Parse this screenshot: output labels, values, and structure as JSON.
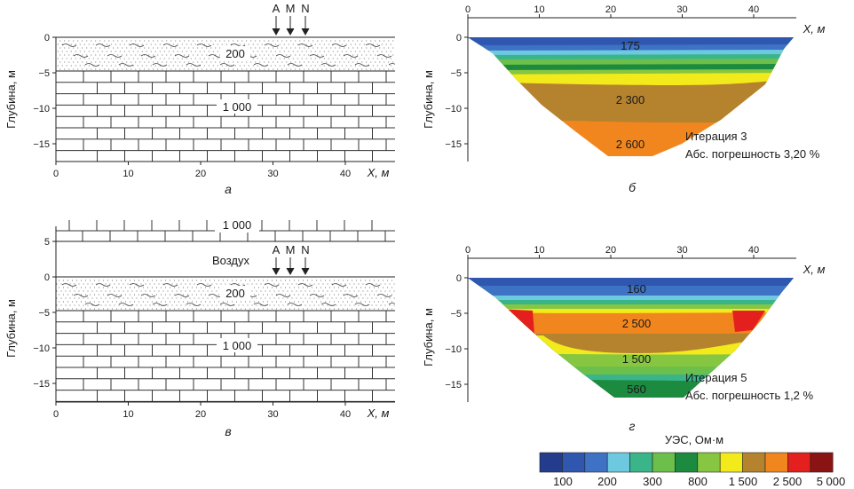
{
  "panels": {
    "a": {
      "caption": "а",
      "ylabel": "Глубина, м",
      "xlabel": "X, м",
      "electrodes": [
        "A",
        "M",
        "N"
      ],
      "layer1_label": "200",
      "layer2_label": "1 000",
      "x_ticks": [
        "0",
        "10",
        "20",
        "30",
        "40"
      ],
      "y_ticks": [
        "0",
        "−5",
        "−10",
        "−15"
      ]
    },
    "b": {
      "caption": "б",
      "ylabel": "Глубина, м",
      "xlabel": "X, м",
      "labels": [
        "175",
        "2 300",
        "2 600"
      ],
      "iteration": "Итерация 3",
      "error": "Абс. погрешность 3,20 %",
      "x_ticks": [
        "0",
        "10",
        "20",
        "30",
        "40"
      ],
      "y_ticks": [
        "0",
        "−5",
        "−10",
        "−15"
      ]
    },
    "v": {
      "caption": "в",
      "ylabel": "Глубина, м",
      "xlabel": "X, м",
      "electrodes": [
        "A",
        "M",
        "N"
      ],
      "air_label": "Воздух",
      "top_label": "1 000",
      "layer1_label": "200",
      "layer2_label": "1 000",
      "x_ticks": [
        "0",
        "10",
        "20",
        "30",
        "40"
      ],
      "y_ticks": [
        "5",
        "0",
        "−5",
        "−10",
        "−15"
      ]
    },
    "g": {
      "caption": "г",
      "ylabel": "Глубина, м",
      "xlabel": "X, м",
      "labels": [
        "160",
        "2 500",
        "1 500",
        "560"
      ],
      "iteration": "Итерация 5",
      "error": "Абс. погрешность 1,2 %",
      "x_ticks": [
        "0",
        "10",
        "20",
        "30",
        "40"
      ],
      "y_ticks": [
        "0",
        "−5",
        "−10",
        "−15"
      ]
    }
  },
  "colorbar": {
    "title": "УЭС, Ом·м",
    "colors": [
      "#233d8c",
      "#2f57b0",
      "#3d72c4",
      "#6cc9e0",
      "#3ab58a",
      "#6cbf4a",
      "#1c8a3f",
      "#86c640",
      "#f2ea1a",
      "#b5822e",
      "#f2861e",
      "#e3201d",
      "#8a1414"
    ],
    "tick_labels": [
      "100",
      "200",
      "300",
      "800",
      "1 500",
      "2 500",
      "5 000"
    ]
  }
}
